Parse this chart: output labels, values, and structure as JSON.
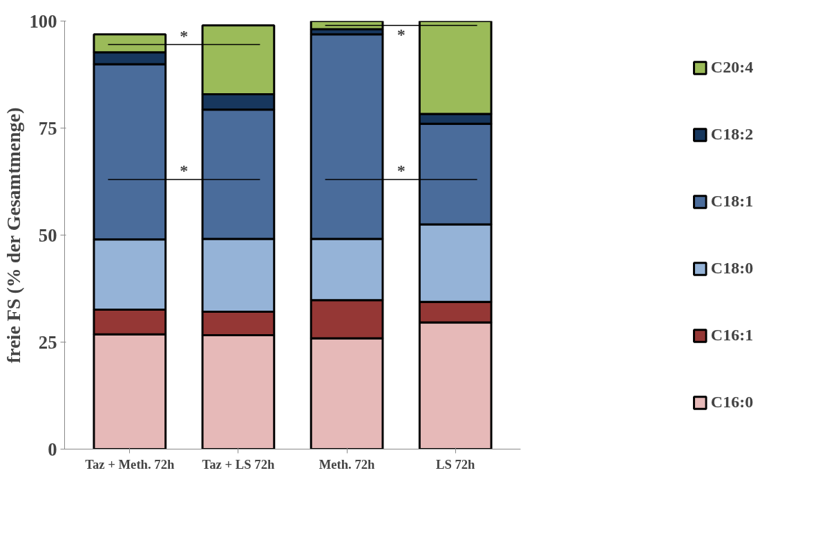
{
  "chart_data": {
    "type": "bar",
    "stacked": true,
    "ylabel": "freie FS (% der Gesamtmenge)",
    "categories": [
      "Taz + Meth. 72h",
      "Taz + LS 72h",
      "Meth. 72h",
      "LS 72h"
    ],
    "series": [
      {
        "name": "C16:0",
        "color": "#e6b9b8",
        "values": [
          26.8,
          26.6,
          25.9,
          29.6
        ]
      },
      {
        "name": "C16:1",
        "color": "#953735",
        "values": [
          5.8,
          5.5,
          8.9,
          4.8
        ]
      },
      {
        "name": "C18:0",
        "color": "#95b3d7",
        "values": [
          16.4,
          17.0,
          14.3,
          18.1
        ]
      },
      {
        "name": "C18:1",
        "color": "#4a6c9b",
        "values": [
          40.9,
          30.2,
          47.8,
          23.5
        ]
      },
      {
        "name": "C18:2",
        "color": "#17375e",
        "values": [
          2.8,
          3.6,
          1.2,
          2.3
        ]
      },
      {
        "name": "C20:4",
        "color": "#9bbb59",
        "values": [
          4.2,
          16.1,
          1.9,
          21.7
        ]
      }
    ],
    "ylim": [
      0,
      100
    ],
    "yticks": [
      0,
      25,
      50,
      75,
      100
    ],
    "grid": false,
    "legend": "right",
    "annotations": [
      "*",
      "*",
      "*",
      "*"
    ]
  }
}
